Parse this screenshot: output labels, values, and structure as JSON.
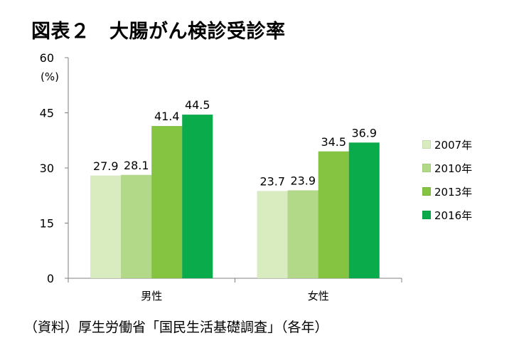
{
  "title": "図表２　大腸がん検診受診率",
  "source": "（資料）厚生労働省「国民生活基礎調査」（各年）",
  "chart_data": {
    "type": "bar",
    "title": "図表２　大腸がん検診受診率",
    "y_unit": "(%)",
    "ylim": [
      0,
      60
    ],
    "yticks": [
      0,
      15,
      30,
      45,
      60
    ],
    "grid": false,
    "legend_position": "right",
    "categories": [
      "男性",
      "女性"
    ],
    "series": [
      {
        "name": "2007年",
        "values": [
          27.9,
          23.7
        ],
        "color": "#d8ecc0"
      },
      {
        "name": "2010年",
        "values": [
          28.1,
          23.9
        ],
        "color": "#b2d987"
      },
      {
        "name": "2013年",
        "values": [
          41.4,
          34.5
        ],
        "color": "#84c441"
      },
      {
        "name": "2016年",
        "values": [
          44.5,
          36.9
        ],
        "color": "#0aab4a"
      }
    ]
  }
}
